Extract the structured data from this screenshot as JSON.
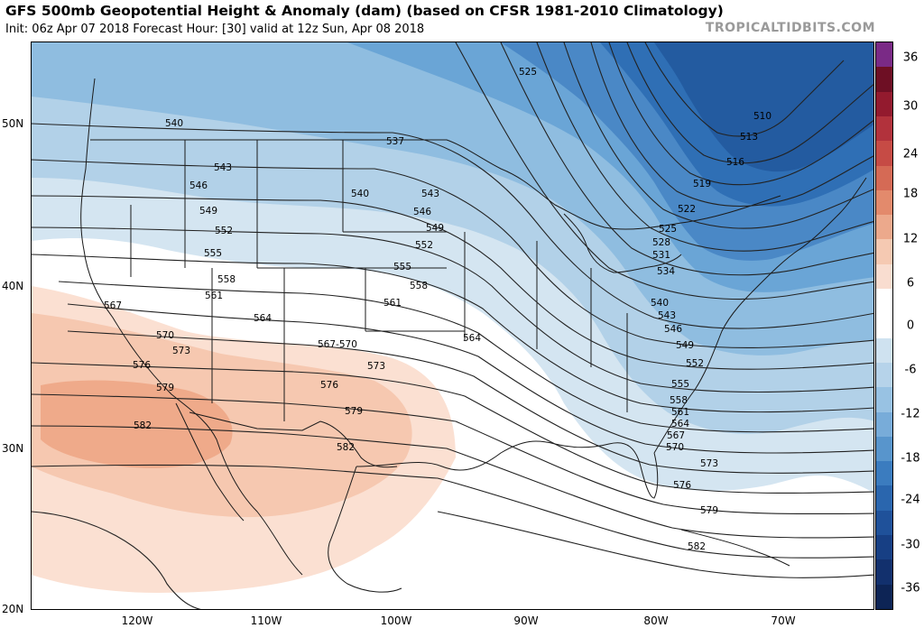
{
  "header": {
    "title": "GFS 500mb Geopotential Height & Anomaly (dam) (based on CFSR 1981-2010 Climatology)",
    "subtitle": "Init: 06z Apr 07 2018   Forecast Hour: [30]   valid at 12z Sun, Apr 08 2018",
    "credit": "TROPICALTIDBITS.COM"
  },
  "axes": {
    "lat_labels": [
      "50N",
      "40N",
      "30N",
      "20N"
    ],
    "lon_labels": [
      "120W",
      "110W",
      "100W",
      "90W",
      "80W",
      "70W"
    ]
  },
  "colorbar": {
    "ticks": [
      "36",
      "30",
      "24",
      "18",
      "12",
      "6",
      "0",
      "-6",
      "-12",
      "-18",
      "-24",
      "-30",
      "-36"
    ],
    "colors": [
      "#7a2a86",
      "#6e0f24",
      "#931a2e",
      "#b2323c",
      "#c64b45",
      "#d56a55",
      "#e38a6c",
      "#eca98c",
      "#f5c9b2",
      "#f9ddd0",
      "#ffffff",
      "#ffffff",
      "#cfe2f0",
      "#b6d3ea",
      "#98c2e3",
      "#78acd9",
      "#5895cc",
      "#3b7cbf",
      "#2a66ae",
      "#1f519a",
      "#173f84",
      "#12306d",
      "#0d2455"
    ]
  },
  "contour_labels": [
    "525",
    "510",
    "513",
    "516",
    "519",
    "522",
    "525",
    "528",
    "531",
    "534",
    "537",
    "540",
    "540",
    "543",
    "543",
    "546",
    "546",
    "549",
    "549",
    "552",
    "552",
    "555",
    "555",
    "558",
    "558",
    "561",
    "561",
    "564",
    "564",
    "567",
    "567-570",
    "570",
    "573",
    "573",
    "576",
    "576",
    "579",
    "579",
    "582",
    "582",
    "540",
    "543",
    "546",
    "549",
    "552",
    "555",
    "558",
    "561",
    "564",
    "567",
    "570",
    "573",
    "576",
    "579",
    "582"
  ]
}
